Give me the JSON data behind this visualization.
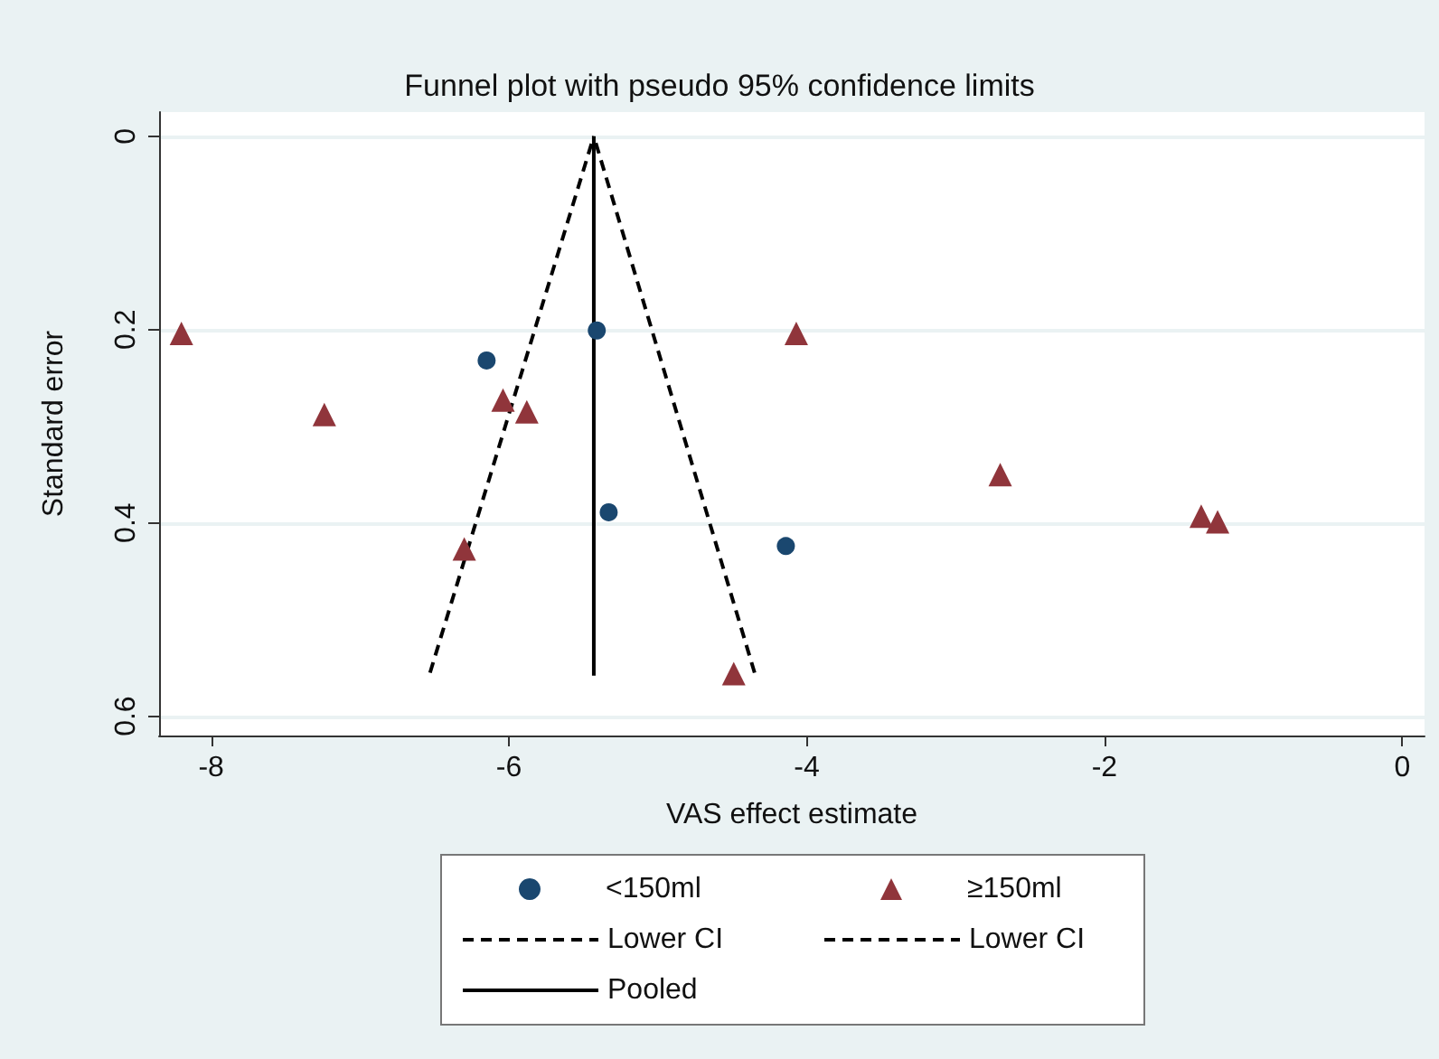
{
  "chart_data": {
    "type": "scatter",
    "title": "Funnel plot with pseudo 95% confidence limits",
    "xlabel": "VAS effect estimate",
    "ylabel": "Standard error",
    "xlim": [
      -8.35,
      0.15
    ],
    "xticks": [
      -8,
      -6,
      -4,
      -2,
      0
    ],
    "ylim": [
      0.62,
      -0.025
    ],
    "yticks": [
      0,
      0.2,
      0.4,
      0.6
    ],
    "grid": "y",
    "legend": "bottom",
    "series": [
      {
        "name": "<150ml",
        "marker": "circle",
        "color": "#1a476f",
        "x": [
          -6.15,
          -5.41,
          -5.33,
          -4.14
        ],
        "values": [
          0.232,
          0.201,
          0.389,
          0.424
        ]
      },
      {
        "name": "≥150ml",
        "marker": "triangle",
        "color": "#90353b",
        "x": [
          -8.2,
          -7.24,
          -6.04,
          -5.88,
          -6.3,
          -4.49,
          -4.07,
          -2.7,
          -1.35,
          -1.24
        ],
        "values": [
          0.204,
          0.288,
          0.273,
          0.285,
          0.427,
          0.556,
          0.204,
          0.35,
          0.393,
          0.399
        ]
      },
      {
        "name": "Lower CI",
        "type": "line",
        "line_style": "dashed",
        "marker": "none",
        "color": "#000000",
        "x": [
          -6.53,
          -5.43
        ],
        "values": [
          0.555,
          0
        ]
      },
      {
        "name": "Lower CI",
        "type": "line",
        "line_style": "dashed",
        "marker": "none",
        "color": "#000000",
        "x": [
          -4.35,
          -5.43
        ],
        "values": [
          0.555,
          0
        ]
      },
      {
        "name": "Pooled",
        "type": "line",
        "line_style": "solid",
        "marker": "none",
        "color": "#000000",
        "x": [
          -5.43,
          -5.43
        ],
        "values": [
          0,
          0.558
        ]
      }
    ]
  }
}
